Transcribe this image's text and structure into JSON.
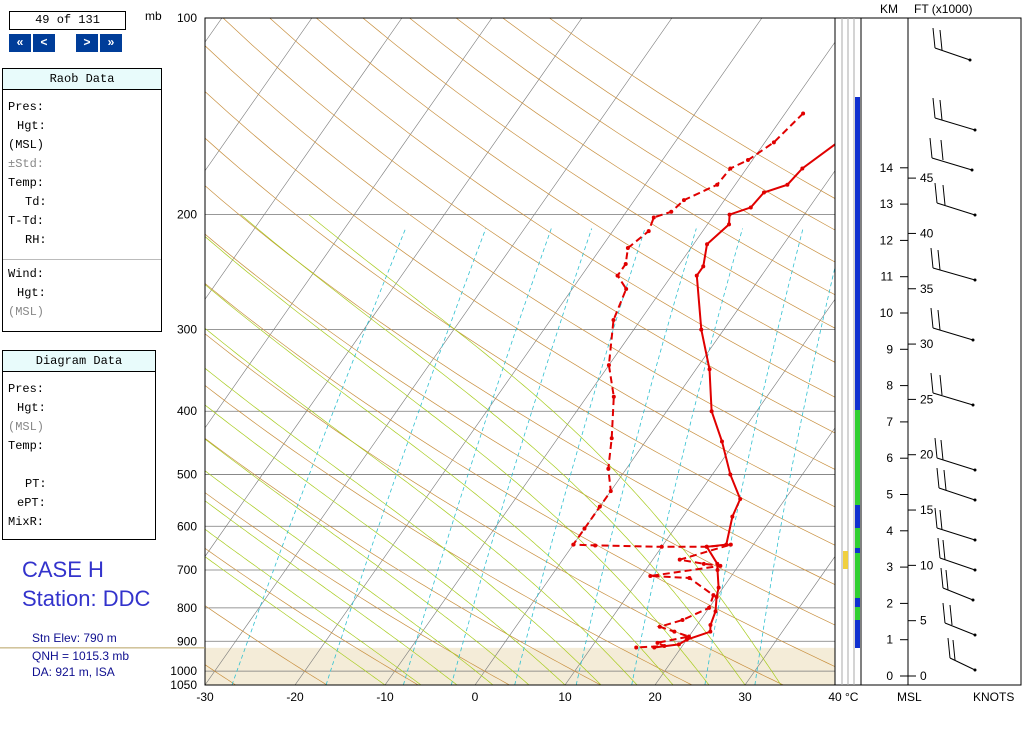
{
  "nav": {
    "counter": "49 of 131",
    "first": "«",
    "prev": "<",
    "next": ">",
    "last": "»"
  },
  "raob_panel": {
    "title": "Raob Data",
    "labels": [
      "Pres:",
      "Hgt:",
      "(MSL)",
      "±Std:",
      "Temp:",
      "Td:",
      "T-Td:",
      "RH:",
      "Wind:",
      "Hgt:",
      "(MSL)"
    ]
  },
  "diagram_panel": {
    "title": "Diagram Data",
    "labels": [
      "Pres:",
      "Hgt:",
      "(MSL)",
      "Temp:",
      "PT:",
      "ePT:",
      "MixR:"
    ]
  },
  "case_label": "CASE H",
  "station_label": "Station: DDC",
  "station_info": {
    "elev": "Stn Elev: 790 m",
    "qnh": "QNH = 1015.3 mb",
    "da": "DA: 921 m, ISA"
  },
  "chart_data": {
    "type": "line",
    "title": "",
    "xlabel": "°C",
    "ylabel": "mb",
    "x_ticks": [
      -30,
      -20,
      -10,
      0,
      10,
      20,
      30,
      40
    ],
    "p_ticks": [
      100,
      200,
      300,
      400,
      500,
      600,
      700,
      800,
      900,
      1000,
      1050
    ],
    "xlim": [
      -30,
      40
    ],
    "ylim": [
      1050,
      100
    ],
    "y_scale": "log",
    "surface_pressure_mb": 921,
    "series": [
      {
        "name": "Temperature",
        "color": "#e00000",
        "style": "solid",
        "points": [
          [
            -1.3,
            140
          ],
          [
            -1.9,
            155
          ],
          [
            -3.8,
            170
          ],
          [
            -4.2,
            180
          ],
          [
            -6.2,
            185
          ],
          [
            -6.5,
            195
          ],
          [
            -8.3,
            200
          ],
          [
            -7.6,
            207
          ],
          [
            -8.5,
            222
          ],
          [
            -7.2,
            240
          ],
          [
            -7.2,
            248
          ],
          [
            -2.5,
            300
          ],
          [
            1.5,
            345
          ],
          [
            5,
            400
          ],
          [
            8.5,
            445
          ],
          [
            12,
            500
          ],
          [
            15,
            545
          ],
          [
            15.5,
            580
          ],
          [
            17,
            640
          ],
          [
            15,
            645
          ],
          [
            17.5,
            685
          ],
          [
            18,
            700
          ],
          [
            19.5,
            745
          ],
          [
            20,
            770
          ],
          [
            21,
            810
          ],
          [
            21.5,
            850
          ],
          [
            22,
            870
          ],
          [
            20,
            895
          ],
          [
            19.5,
            910
          ],
          [
            17,
            920
          ]
        ]
      },
      {
        "name": "Dewpoint",
        "color": "#e00000",
        "style": "dashed",
        "points": [
          [
            -8,
            140
          ],
          [
            -9,
            155
          ],
          [
            -10.5,
            165
          ],
          [
            -11.8,
            170
          ],
          [
            -12,
            180
          ],
          [
            -14.5,
            190
          ],
          [
            -15,
            198
          ],
          [
            -16.5,
            202
          ],
          [
            -16,
            212
          ],
          [
            -17,
            225
          ],
          [
            -16,
            238
          ],
          [
            -16,
            248
          ],
          [
            -14,
            260
          ],
          [
            -13,
            290
          ],
          [
            -10,
            340
          ],
          [
            -7,
            380
          ],
          [
            -4,
            440
          ],
          [
            -2,
            490
          ],
          [
            0,
            530
          ],
          [
            0,
            560
          ],
          [
            0,
            605
          ],
          [
            0,
            640
          ],
          [
            2.5,
            642
          ],
          [
            10,
            645
          ],
          [
            15,
            645
          ],
          [
            17.5,
            640
          ],
          [
            13,
            675
          ],
          [
            16,
            685
          ],
          [
            18,
            690
          ],
          [
            11,
            715
          ],
          [
            15.5,
            720
          ],
          [
            19.5,
            765
          ],
          [
            20,
            800
          ],
          [
            18,
            835
          ],
          [
            16,
            855
          ],
          [
            18,
            870
          ],
          [
            20,
            885
          ],
          [
            17,
            905
          ],
          [
            18,
            915
          ],
          [
            15,
            920
          ]
        ]
      }
    ],
    "wind_hgt_km_ticks": [
      0,
      1,
      2,
      3,
      4,
      5,
      6,
      7,
      8,
      9,
      10,
      11,
      12,
      13,
      14
    ],
    "wind_ft_ticks": [
      0,
      5,
      10,
      15,
      20,
      25,
      30,
      35,
      40,
      45
    ],
    "km_label": "KM",
    "ft_label": "FT (x1000)",
    "msl_label": "MSL",
    "knots_label": "KNOTS"
  }
}
